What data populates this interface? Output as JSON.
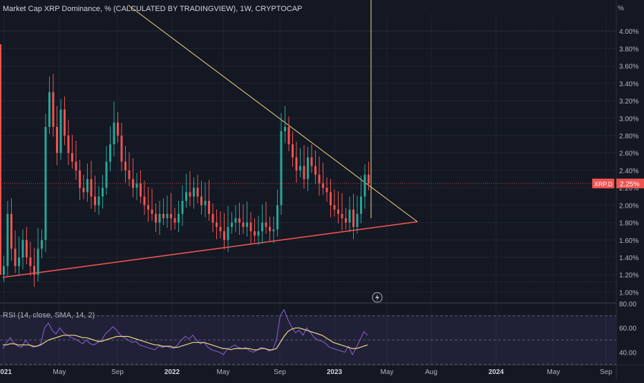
{
  "header": {
    "title": "Market Cap XRP Dominance, % (CALCULATED BY TRADINGVIEW), 1W, CRYPTOCAP",
    "unit": "%"
  },
  "rsi_panel": {
    "label": "RSI (14, close, SMA, 14, 2)"
  },
  "colors": {
    "background": "#141823",
    "up": "#26a69a",
    "down": "#ef5350",
    "trendline_upper": "#f0d884",
    "trendline_lower": "#ef5350",
    "rsi_line": "#7e57c2",
    "rsi_sma": "#f0d884",
    "badge": "#ef5350"
  },
  "chart_data": [
    {
      "type": "candlestick",
      "title": "Market Cap XRP Dominance, % (CALCULATED BY TRADINGVIEW), 1W, CRYPTOCAP",
      "y_unit": "%",
      "ylim": [
        0.9,
        4.2
      ],
      "y_ticks": [
        "4.00%",
        "3.80%",
        "3.60%",
        "3.40%",
        "3.20%",
        "3.00%",
        "2.80%",
        "2.60%",
        "2.40%",
        "2.20%",
        "2.00%",
        "1.80%",
        "1.60%",
        "1.40%",
        "1.20%",
        "1.00%"
      ],
      "x_ticks": [
        "2021",
        "May",
        "Sep",
        "2022",
        "May",
        "Sep",
        "2023",
        "May",
        "Aug",
        "2024",
        "May",
        "Sep"
      ],
      "last_value_badge": {
        "label": "XRP.D",
        "value": "2.25%"
      },
      "candles_open_close": [
        [
          1.2,
          1.3
        ],
        [
          1.3,
          1.9
        ],
        [
          1.9,
          1.5
        ],
        [
          1.5,
          1.3
        ],
        [
          1.3,
          1.4
        ],
        [
          1.4,
          1.6
        ],
        [
          1.6,
          1.4
        ],
        [
          1.4,
          1.3
        ],
        [
          1.3,
          1.2
        ],
        [
          1.2,
          1.5
        ],
        [
          1.5,
          1.6
        ],
        [
          1.6,
          2.9
        ],
        [
          2.9,
          3.3
        ],
        [
          3.3,
          2.9
        ],
        [
          2.9,
          2.6
        ],
        [
          2.6,
          3.1
        ],
        [
          3.1,
          2.8
        ],
        [
          2.8,
          2.6
        ],
        [
          2.6,
          2.5
        ],
        [
          2.5,
          2.4
        ],
        [
          2.4,
          2.2
        ],
        [
          2.2,
          2.15
        ],
        [
          2.15,
          2.3
        ],
        [
          2.3,
          2.1
        ],
        [
          2.1,
          2.0
        ],
        [
          2.0,
          2.1
        ],
        [
          2.1,
          2.2
        ],
        [
          2.2,
          2.5
        ],
        [
          2.5,
          2.7
        ],
        [
          2.7,
          2.95
        ],
        [
          2.95,
          2.8
        ],
        [
          2.8,
          2.5
        ],
        [
          2.5,
          2.4
        ],
        [
          2.4,
          2.3
        ],
        [
          2.3,
          2.2
        ],
        [
          2.2,
          2.25
        ],
        [
          2.25,
          2.1
        ],
        [
          2.1,
          2.0
        ],
        [
          2.0,
          1.95
        ],
        [
          1.95,
          1.9
        ],
        [
          1.9,
          1.8
        ],
        [
          1.8,
          1.9
        ],
        [
          1.9,
          1.85
        ],
        [
          1.85,
          1.9
        ],
        [
          1.9,
          1.85
        ],
        [
          1.85,
          1.8
        ],
        [
          1.8,
          1.9
        ],
        [
          1.9,
          2.05
        ],
        [
          2.05,
          2.15
        ],
        [
          2.15,
          2.1
        ],
        [
          2.1,
          2.2
        ],
        [
          2.2,
          2.1
        ],
        [
          2.1,
          2.0
        ],
        [
          2.0,
          2.05
        ],
        [
          2.05,
          1.9
        ],
        [
          1.9,
          1.8
        ],
        [
          1.8,
          1.75
        ],
        [
          1.75,
          1.7
        ],
        [
          1.7,
          1.6
        ],
        [
          1.6,
          1.75
        ],
        [
          1.75,
          1.8
        ],
        [
          1.8,
          1.85
        ],
        [
          1.85,
          1.8
        ],
        [
          1.8,
          1.75
        ],
        [
          1.75,
          1.8
        ],
        [
          1.8,
          1.7
        ],
        [
          1.7,
          1.65
        ],
        [
          1.65,
          1.7
        ],
        [
          1.7,
          1.8
        ],
        [
          1.8,
          1.75
        ],
        [
          1.75,
          1.7
        ],
        [
          1.7,
          1.72
        ],
        [
          1.72,
          2.0
        ],
        [
          2.0,
          2.85
        ],
        [
          2.85,
          2.9
        ],
        [
          2.9,
          2.7
        ],
        [
          2.7,
          2.55
        ],
        [
          2.55,
          2.4
        ],
        [
          2.4,
          2.45
        ],
        [
          2.45,
          2.3
        ],
        [
          2.3,
          2.55
        ],
        [
          2.55,
          2.45
        ],
        [
          2.45,
          2.35
        ],
        [
          2.35,
          2.25
        ],
        [
          2.25,
          2.2
        ],
        [
          2.2,
          2.15
        ],
        [
          2.15,
          2.0
        ],
        [
          2.0,
          1.95
        ],
        [
          1.95,
          1.9
        ],
        [
          1.9,
          1.85
        ],
        [
          1.85,
          1.8
        ],
        [
          1.8,
          1.95
        ],
        [
          1.95,
          1.75
        ],
        [
          1.75,
          1.9
        ],
        [
          1.9,
          2.1
        ],
        [
          2.1,
          2.35
        ],
        [
          2.35,
          2.25
        ]
      ],
      "trendlines": [
        {
          "name": "",
          "from": [
            0,
            1.17
          ],
          "to": [
            100,
            1.81
          ]
        },
        {
          "name": "",
          "from": [
            33,
            4.3
          ],
          "to": [
            100,
            1.81
          ]
        }
      ]
    },
    {
      "type": "line",
      "title": "RSI (14, close, SMA, 14, 2)",
      "ylim": [
        30,
        80
      ],
      "y_ticks": [
        "80.00",
        "60.00",
        "40.00"
      ],
      "bands": [
        70,
        50,
        30
      ],
      "series": [
        {
          "name": "",
          "values": [
            43,
            48,
            52,
            47,
            45,
            44,
            50,
            46,
            44,
            45,
            47,
            60,
            64,
            58,
            55,
            60,
            56,
            54,
            52,
            51,
            49,
            47,
            50,
            47,
            46,
            48,
            50,
            55,
            58,
            61,
            58,
            54,
            52,
            50,
            48,
            49,
            46,
            45,
            44,
            43,
            42,
            45,
            44,
            45,
            44,
            43,
            46,
            50,
            53,
            51,
            54,
            50,
            47,
            48,
            44,
            42,
            41,
            40,
            38,
            42,
            44,
            46,
            44,
            43,
            44,
            41,
            40,
            42,
            44,
            43,
            41,
            42,
            50,
            70,
            75,
            67,
            61,
            56,
            58,
            54,
            60,
            56,
            52,
            50,
            49,
            47,
            44,
            43,
            42,
            41,
            40,
            45,
            38,
            44,
            50,
            57,
            54
          ]
        },
        {
          "name": "",
          "values": [
            46,
            46,
            47,
            47,
            46,
            46,
            46,
            46,
            45,
            45,
            46,
            48,
            50,
            51,
            52,
            53,
            54,
            54,
            54,
            54,
            53,
            52,
            52,
            51,
            50,
            49,
            49,
            50,
            51,
            52,
            53,
            53,
            53,
            53,
            52,
            51,
            50,
            49,
            48,
            47,
            46,
            46,
            45,
            45,
            45,
            44,
            44,
            45,
            46,
            47,
            48,
            48,
            48,
            48,
            47,
            46,
            45,
            44,
            43,
            43,
            42,
            43,
            43,
            43,
            43,
            43,
            42,
            42,
            43,
            43,
            42,
            42,
            43,
            48,
            53,
            57,
            59,
            60,
            60,
            59,
            58,
            57,
            56,
            55,
            54,
            52,
            50,
            48,
            47,
            46,
            45,
            44,
            43,
            43,
            44,
            45,
            46
          ]
        }
      ]
    }
  ]
}
